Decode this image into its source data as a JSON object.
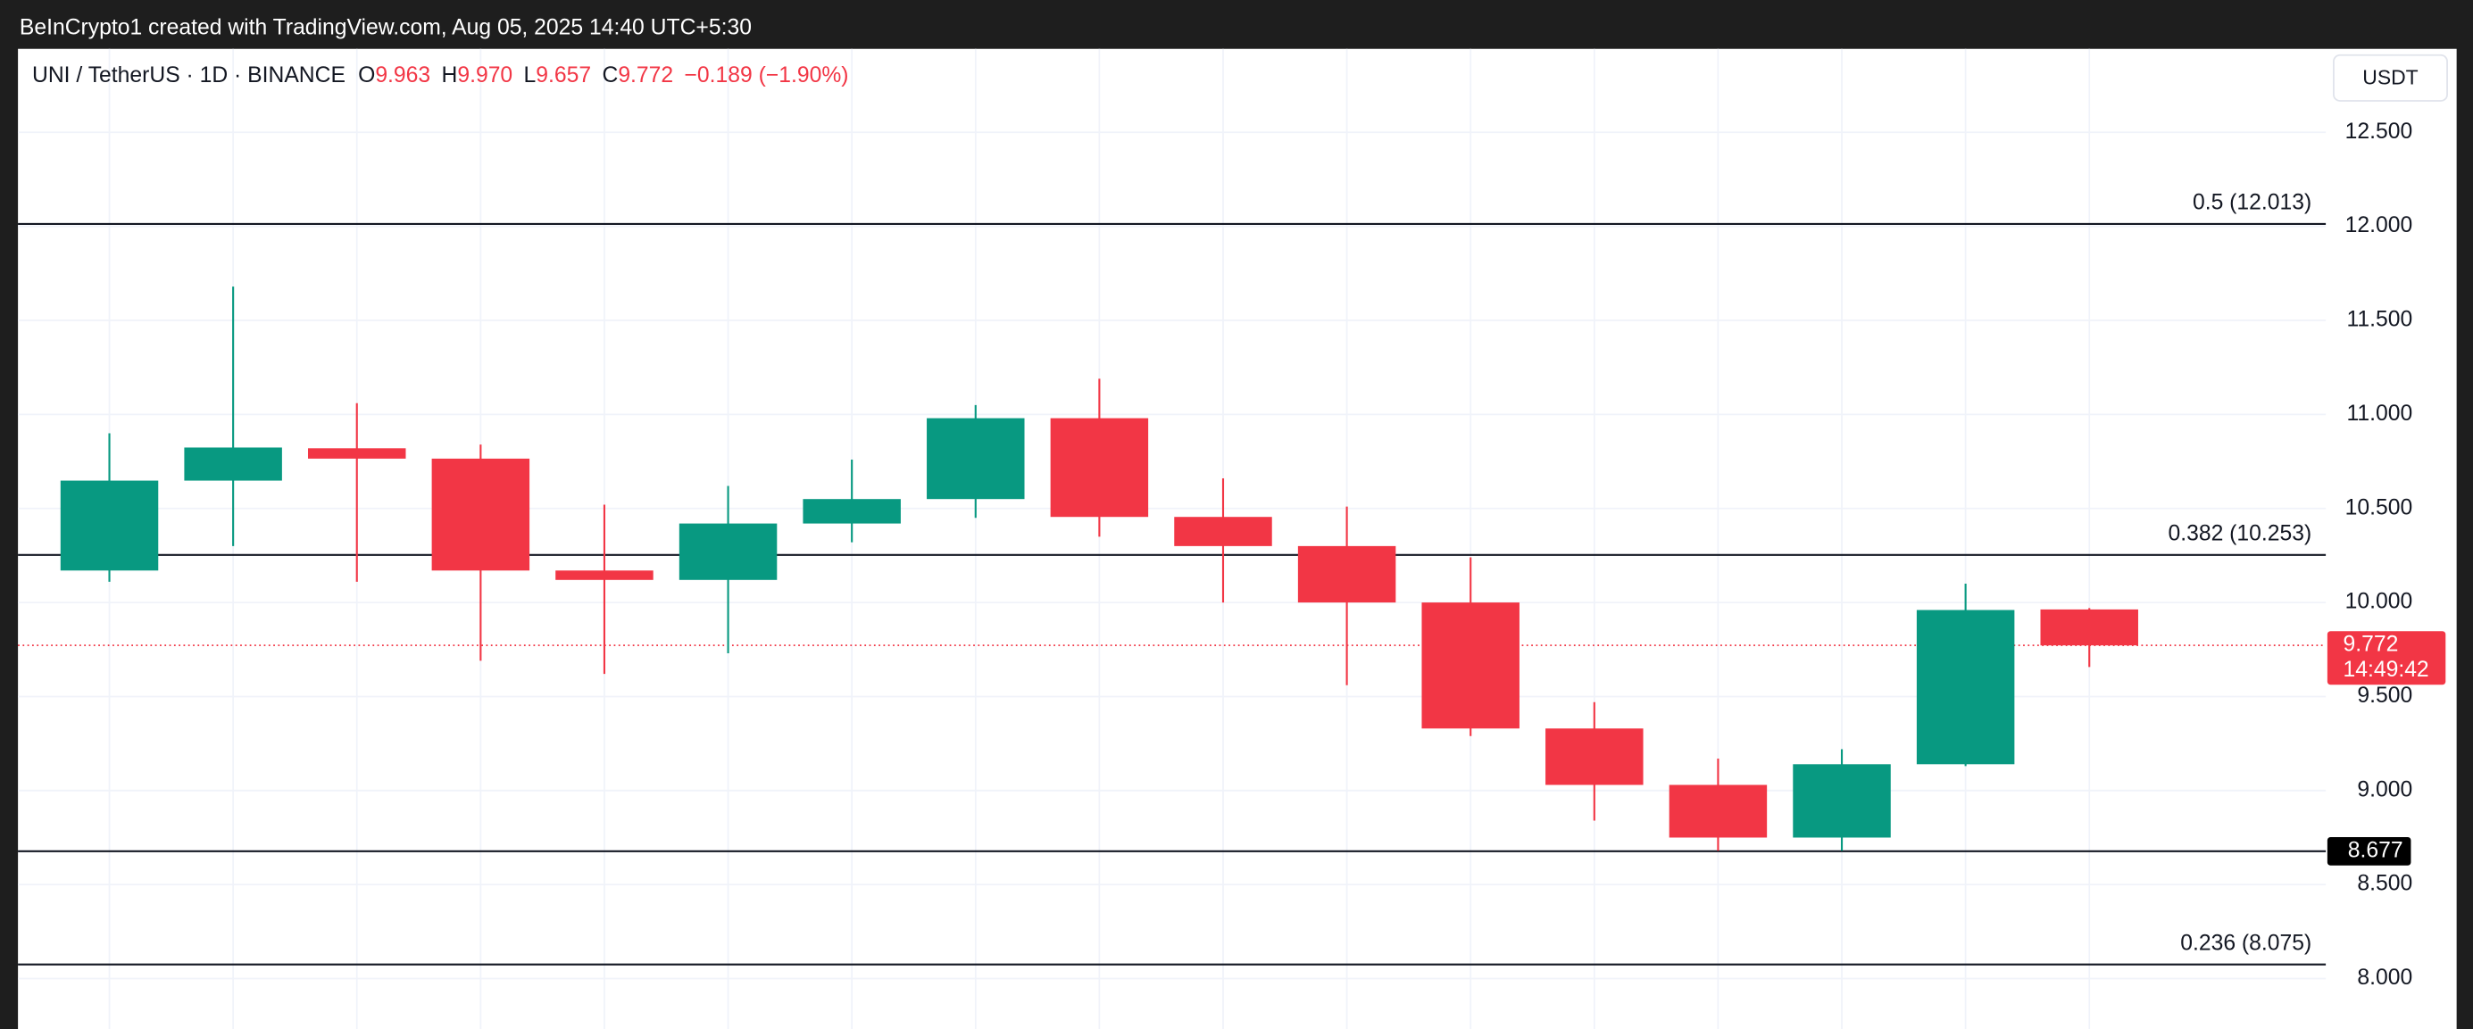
{
  "header": {
    "attribution": "BeInCrypto1 created with TradingView.com, Aug 05, 2025 14:40 UTC+5:30"
  },
  "chart_data": {
    "type": "candlestick",
    "symbol": "UNI / TetherUS · 1D · BINANCE",
    "ohlc_legend": [
      {
        "key": "O",
        "value": "9.963"
      },
      {
        "key": "H",
        "value": "9.970"
      },
      {
        "key": "L",
        "value": "9.657"
      },
      {
        "key": "C",
        "value": "9.772"
      }
    ],
    "change": "−0.189 (−1.90%)",
    "currency": "USDT",
    "open": [
      10.17,
      10.648,
      10.82,
      10.765,
      10.17,
      10.12,
      10.42,
      10.55,
      10.98,
      10.455,
      10.3,
      10.0,
      9.33,
      9.03,
      8.75,
      9.14,
      9.963
    ],
    "high": [
      10.9,
      11.68,
      11.06,
      10.84,
      10.52,
      10.62,
      10.76,
      11.05,
      11.19,
      10.66,
      10.51,
      10.24,
      9.47,
      9.17,
      9.22,
      10.1,
      9.97
    ],
    "low": [
      10.11,
      10.3,
      10.11,
      9.69,
      9.62,
      9.73,
      10.32,
      10.45,
      10.35,
      10.0,
      9.56,
      9.29,
      8.84,
      8.68,
      8.68,
      9.13,
      9.657
    ],
    "close": [
      10.648,
      10.824,
      10.765,
      10.17,
      10.12,
      10.42,
      10.55,
      10.98,
      10.455,
      10.3,
      10.0,
      9.33,
      9.03,
      8.75,
      9.14,
      9.96,
      9.772
    ],
    "up_color": "#089981",
    "down_color": "#f23645",
    "ylim": [
      7.732,
      12.944
    ],
    "yticks": [
      {
        "value": 8.0,
        "label": "8.000"
      },
      {
        "value": 8.5,
        "label": "8.500"
      },
      {
        "value": 9.0,
        "label": "9.000"
      },
      {
        "value": 9.5,
        "label": "9.500"
      },
      {
        "value": 10.0,
        "label": "10.000"
      },
      {
        "value": 10.5,
        "label": "10.500"
      },
      {
        "value": 11.0,
        "label": "11.000"
      },
      {
        "value": 11.5,
        "label": "11.500"
      },
      {
        "value": 12.0,
        "label": "12.000"
      },
      {
        "value": 12.5,
        "label": "12.500"
      }
    ],
    "grid": true,
    "levels": [
      {
        "value": 12.013,
        "label": "0.5 (12.013)"
      },
      {
        "value": 10.253,
        "label": "0.382 (10.253)"
      },
      {
        "value": 8.075,
        "label": "0.236 (8.075)"
      }
    ],
    "marked_level": {
      "value": 8.677,
      "label": "8.677"
    },
    "current_price": {
      "value": 9.772,
      "label": "9.772",
      "countdown": "14:49:42"
    }
  }
}
